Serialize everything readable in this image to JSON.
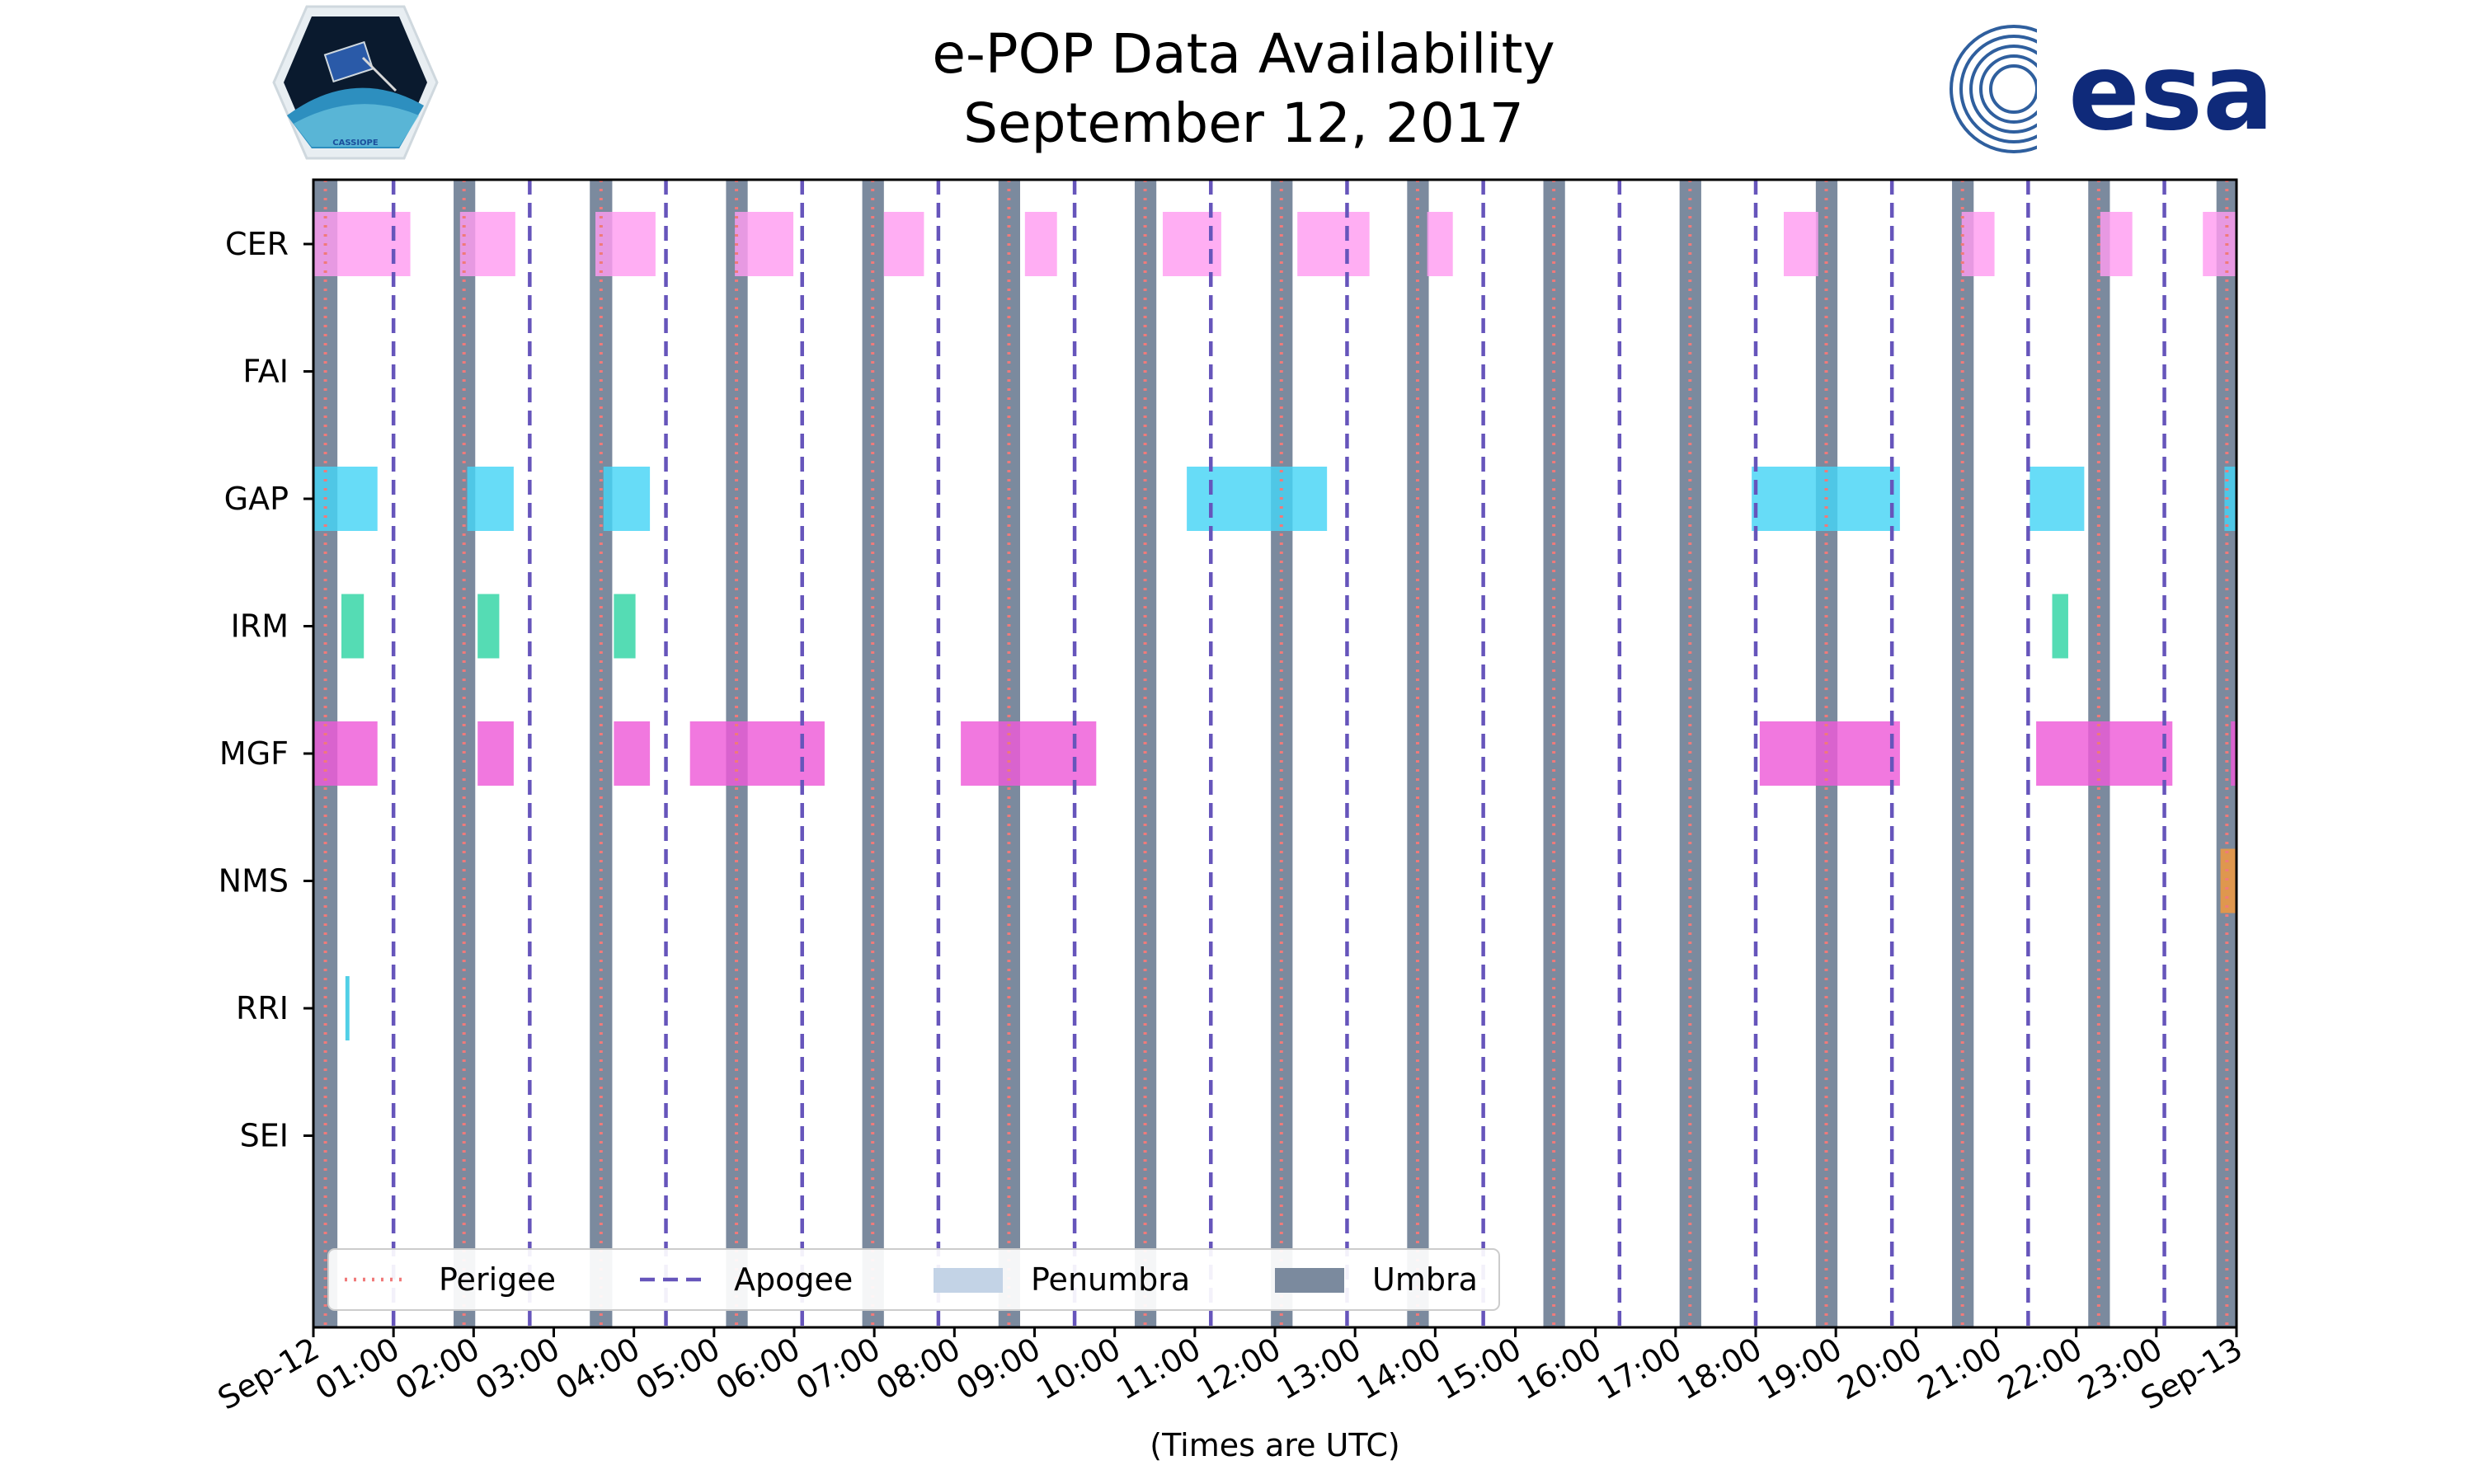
{
  "header": {
    "title_line1": "e-POP Data Availability",
    "title_line2": "September 12, 2017",
    "left_logo_text": "CASSIOPE",
    "right_logo_text": "esa"
  },
  "chart_data": {
    "type": "timeline",
    "title": "e-POP Data Availability September 12, 2017",
    "xlabel": "(Times are UTC)",
    "xlim_hours": [
      0,
      24
    ],
    "x_tick_labels": [
      "Sep-12",
      "01:00",
      "02:00",
      "03:00",
      "04:00",
      "05:00",
      "06:00",
      "07:00",
      "08:00",
      "09:00",
      "10:00",
      "11:00",
      "12:00",
      "13:00",
      "14:00",
      "15:00",
      "16:00",
      "17:00",
      "18:00",
      "19:00",
      "20:00",
      "21:00",
      "22:00",
      "23:00",
      "Sep-13"
    ],
    "instruments": [
      "CER",
      "FAI",
      "GAP",
      "IRM",
      "MGF",
      "NMS",
      "RRI",
      "SEI"
    ],
    "colors": {
      "CER": "#ff9cf0",
      "GAP": "#45d4f5",
      "IRM": "#2fd4a4",
      "MGF": "#ee5ad8",
      "NMS": "#f59a3c",
      "RRI": "#2bc4e0",
      "umbra": "#7b8a9e",
      "penumbra": "#c3d3e6",
      "perigee": "#f07a7a",
      "apogee": "#6655bb"
    },
    "intervals": {
      "CER": [
        [
          0.0,
          1.21
        ],
        [
          1.83,
          2.52
        ],
        [
          3.52,
          4.27
        ],
        [
          5.26,
          5.99
        ],
        [
          7.12,
          7.62
        ],
        [
          8.88,
          9.28
        ],
        [
          10.6,
          11.33
        ],
        [
          12.28,
          13.18
        ],
        [
          13.9,
          14.22
        ],
        [
          18.35,
          18.78
        ],
        [
          20.57,
          20.98
        ],
        [
          22.3,
          22.7
        ],
        [
          23.58,
          24.0
        ]
      ],
      "FAI": [],
      "GAP": [
        [
          0.0,
          0.8
        ],
        [
          1.92,
          2.5
        ],
        [
          3.62,
          4.2
        ],
        [
          10.9,
          12.65
        ],
        [
          17.95,
          19.8
        ],
        [
          21.42,
          22.1
        ],
        [
          23.85,
          24.0
        ]
      ],
      "IRM": [
        [
          0.35,
          0.63
        ],
        [
          2.05,
          2.32
        ],
        [
          3.75,
          4.02
        ],
        [
          21.7,
          21.9
        ]
      ],
      "MGF": [
        [
          0.0,
          0.8
        ],
        [
          2.05,
          2.5
        ],
        [
          3.75,
          4.2
        ],
        [
          4.7,
          6.38
        ],
        [
          8.08,
          9.77
        ],
        [
          18.05,
          19.8
        ],
        [
          21.5,
          23.2
        ],
        [
          23.93,
          24.0
        ]
      ],
      "NMS": [
        [
          23.8,
          24.0
        ]
      ],
      "RRI": [
        [
          0.4,
          0.45
        ]
      ],
      "SEI": []
    },
    "umbra": [
      [
        0.0,
        0.3
      ],
      [
        1.75,
        2.02
      ],
      [
        3.45,
        3.73
      ],
      [
        5.15,
        5.42
      ],
      [
        6.85,
        7.12
      ],
      [
        8.55,
        8.82
      ],
      [
        10.25,
        10.52
      ],
      [
        11.95,
        12.22
      ],
      [
        13.65,
        13.92
      ],
      [
        15.35,
        15.62
      ],
      [
        17.05,
        17.32
      ],
      [
        18.75,
        19.02
      ],
      [
        20.45,
        20.72
      ],
      [
        22.15,
        22.42
      ],
      [
        23.75,
        24.0
      ]
    ],
    "perigee": [
      0.15,
      1.88,
      3.59,
      5.28,
      6.98,
      8.68,
      10.38,
      12.08,
      13.78,
      15.48,
      17.18,
      18.88,
      20.58,
      22.28,
      23.88
    ],
    "apogee": [
      1.0,
      2.7,
      4.4,
      6.1,
      7.8,
      9.5,
      11.2,
      12.9,
      14.6,
      16.3,
      18.0,
      19.7,
      21.4,
      23.1
    ],
    "legend": [
      "Perigee",
      "Apogee",
      "Penumbra",
      "Umbra"
    ],
    "legend_location": "lower-left"
  }
}
